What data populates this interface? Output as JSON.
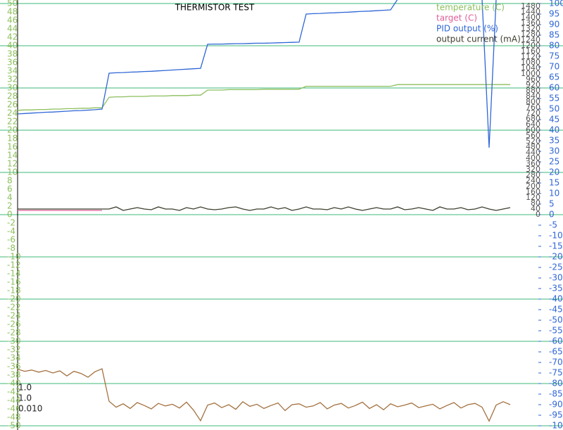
{
  "chart_data": {
    "type": "line",
    "title": "THERMISTOR TEST",
    "legend": "top-right",
    "grid": true,
    "annotations": [
      "1.0",
      "1.0",
      "0.010"
    ],
    "ylim": [
      -50,
      50
    ],
    "yticks": [
      50,
      48,
      46,
      44,
      42,
      40,
      38,
      36,
      34,
      32,
      30,
      28,
      26,
      24,
      22,
      20,
      18,
      16,
      14,
      12,
      10,
      8,
      6,
      4,
      2,
      0,
      -2,
      -4,
      -6,
      -8,
      -10,
      -12,
      -14,
      -16,
      -18,
      -20,
      -22,
      -24,
      -26,
      -28,
      -30,
      -32,
      -34,
      -36,
      -38,
      -40,
      -42,
      -44,
      -46,
      -48,
      -50
    ],
    "y2lim": [
      -100,
      100
    ],
    "y2ticks": [
      100,
      95,
      90,
      85,
      80,
      75,
      70,
      65,
      60,
      55,
      50,
      45,
      40,
      35,
      30,
      25,
      20,
      15,
      10,
      5,
      0,
      -5,
      -10,
      -15,
      -20,
      -25,
      -30,
      -35,
      -40,
      -45,
      -50,
      -55,
      -60,
      -65,
      -70,
      -75,
      -80,
      -85,
      -90,
      -95,
      -100
    ],
    "y3lim": [
      0,
      1500
    ],
    "y3ticks": [
      0,
      40,
      80,
      120,
      160,
      200,
      240,
      280,
      320,
      360,
      400,
      440,
      480,
      520,
      560,
      600,
      640,
      680,
      720,
      760,
      800,
      840,
      880,
      920,
      960,
      1000,
      1040,
      1080,
      1120,
      1160,
      1200,
      1240,
      1280,
      1320,
      1360,
      1400,
      1440,
      1480
    ],
    "series": [
      {
        "name": "temperature (C)",
        "color": "#8cbf5c",
        "axis": "y",
        "values": [
          24.7,
          24.8,
          24.8,
          24.9,
          24.9,
          25.0,
          25.0,
          25.1,
          25.1,
          25.2,
          25.2,
          25.3,
          25.3,
          27.8,
          27.9,
          27.9,
          28.0,
          28.0,
          28.0,
          28.1,
          28.1,
          28.1,
          28.2,
          28.2,
          28.2,
          28.3,
          28.3,
          29.5,
          29.5,
          29.5,
          29.6,
          29.6,
          29.6,
          29.6,
          29.6,
          29.7,
          29.7,
          29.7,
          29.7,
          29.7,
          29.7,
          30.4,
          30.4,
          30.4,
          30.4,
          30.4,
          30.4,
          30.4,
          30.4,
          30.4,
          30.4,
          30.4,
          30.4,
          30.4,
          30.8,
          30.8,
          30.8,
          30.8,
          30.8,
          30.8,
          30.8,
          30.8,
          30.8,
          30.8,
          30.8,
          30.8,
          30.8,
          30.8,
          30.8,
          30.8,
          30.8
        ]
      },
      {
        "name": "target (C)",
        "color": "#e0609a",
        "axis": "y",
        "values": [
          1,
          1,
          1,
          1,
          1,
          1,
          1,
          1,
          1,
          1,
          1,
          1,
          1,
          null,
          null,
          null,
          null,
          null,
          null,
          null,
          null,
          null,
          null,
          null,
          null,
          null,
          null,
          null,
          null,
          null,
          null,
          null,
          null,
          null,
          null,
          null,
          null,
          null,
          null,
          null,
          null,
          null,
          null,
          null,
          null,
          null,
          null,
          null,
          null,
          null,
          null,
          null,
          null,
          null,
          null,
          null,
          null,
          null,
          null,
          null,
          null,
          null,
          null,
          null,
          null,
          null,
          null,
          null,
          null,
          null,
          null
        ]
      },
      {
        "name": "PID output (%)",
        "color": "#2f66d6",
        "axis": "y2",
        "values": [
          47.7,
          47.9,
          48.1,
          48.3,
          48.5,
          48.6,
          48.8,
          49.0,
          49.2,
          49.3,
          49.5,
          49.7,
          50.0,
          67.0,
          67.2,
          67.3,
          67.5,
          67.6,
          67.8,
          67.9,
          68.1,
          68.3,
          68.5,
          68.7,
          68.9,
          69.1,
          69.3,
          80.7,
          80.8,
          80.8,
          80.9,
          81.0,
          81.0,
          81.1,
          81.2,
          81.2,
          81.3,
          81.4,
          81.5,
          81.6,
          81.7,
          95.0,
          95.2,
          95.3,
          95.5,
          95.6,
          95.8,
          95.9,
          96.1,
          96.3,
          96.4,
          96.6,
          96.8,
          97.0,
          102,
          102,
          102,
          102,
          102,
          102,
          102,
          102,
          102,
          102,
          102,
          102,
          102,
          31.7,
          102,
          102,
          102
        ]
      },
      {
        "name": "output current (mA)",
        "color": "#3d3d2e",
        "axis": "y3",
        "values": [
          40,
          40,
          40,
          40,
          40,
          40,
          40,
          40,
          40,
          40,
          40,
          40,
          40,
          40,
          55,
          30,
          40,
          50,
          40,
          35,
          55,
          40,
          40,
          30,
          50,
          40,
          55,
          40,
          35,
          40,
          50,
          55,
          40,
          30,
          40,
          40,
          55,
          40,
          50,
          30,
          40,
          55,
          40,
          40,
          35,
          50,
          40,
          55,
          40,
          30,
          40,
          50,
          40,
          40,
          55,
          35,
          40,
          50,
          40,
          30,
          55,
          40,
          40,
          50,
          35,
          40,
          55,
          40,
          30,
          40,
          50
        ]
      },
      {
        "color": "#a3703e",
        "axis": "y",
        "values": [
          -36.6,
          -37.1,
          -36.8,
          -37.3,
          -36.9,
          -37.5,
          -37.0,
          -38.2,
          -37.1,
          -37.6,
          -38.5,
          -37.2,
          -36.5,
          -44.2,
          -45.6,
          -44.8,
          -45.9,
          -44.5,
          -45.2,
          -46.0,
          -44.7,
          -45.3,
          -44.9,
          -45.8,
          -44.4,
          -46.3,
          -48.8,
          -45.1,
          -44.6,
          -45.7,
          -45.0,
          -46.1,
          -44.3,
          -45.4,
          -44.9,
          -45.9,
          -45.2,
          -44.6,
          -46.4,
          -45.0,
          -44.8,
          -45.6,
          -45.3,
          -44.5,
          -46.0,
          -45.1,
          -44.7,
          -45.8,
          -45.2,
          -44.4,
          -45.9,
          -45.0,
          -46.2,
          -44.8,
          -45.5,
          -45.1,
          -44.6,
          -45.7,
          -45.3,
          -44.9,
          -46.0,
          -45.2,
          -44.5,
          -45.8,
          -45.0,
          -44.7,
          -45.6,
          -48.9,
          -45.1,
          -44.3,
          -45.0
        ]
      }
    ]
  }
}
